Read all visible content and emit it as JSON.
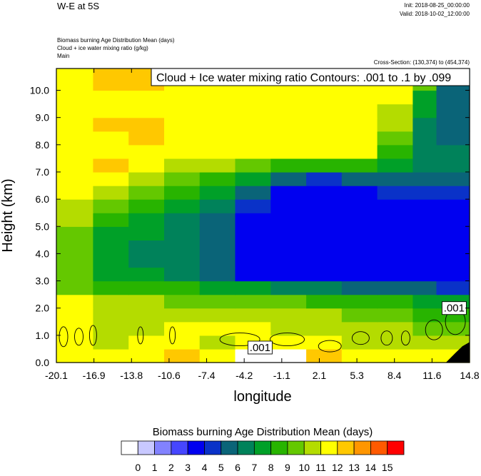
{
  "chart_data": {
    "type": "heatmap",
    "main_title": "W-E at 5S",
    "init_time": "Init: 2018-08-25_00:00:00",
    "valid_time": "Valid: 2018-10-02_12:00:00",
    "field_desc": [
      "Biomass burning Age Distribution Mean   (days)",
      "Cloud + ice water mixing ratio   (g/kg)",
      "Main"
    ],
    "cross_section": "Cross-Section: (130,374) to (454,374)",
    "contour_info": "Cloud + Ice water mixing ratio Contours: .001 to .1 by .099",
    "contour_labels": [
      {
        "text": ".001",
        "lon": -2.9,
        "h": 0.55
      },
      {
        "text": ".001",
        "lon": 13.5,
        "h": 2.0
      }
    ],
    "xlabel": "longitude",
    "ylabel": "Height (km)",
    "x_ticks": [
      "-20.1",
      "-16.9",
      "-13.8",
      "-10.6",
      "-7.4",
      "-4.2",
      "-1.1",
      "2.1",
      "5.3",
      "8.4",
      "11.6",
      "14.8"
    ],
    "y_ticks": [
      "0.0",
      "1.0",
      "2.0",
      "3.0",
      "4.0",
      "5.0",
      "6.0",
      "7.0",
      "8.0",
      "9.0",
      "10.0"
    ],
    "xlim": [
      -20.1,
      14.8
    ],
    "ylim": [
      0,
      10.8
    ],
    "colorbar": {
      "title": "Biomass burning Age Distribution Mean  (days)",
      "labels": [
        "0",
        "1",
        "2",
        "3",
        "4",
        "5",
        "6",
        "7",
        "8",
        "9",
        "10",
        "11",
        "12",
        "13",
        "14",
        "15"
      ],
      "colors": [
        "#ffffff",
        "#c8c8ff",
        "#8282ff",
        "#4646ff",
        "#0000f0",
        "#0a32c8",
        "#0a6478",
        "#00825a",
        "#00a028",
        "#28b400",
        "#64c800",
        "#b4dc00",
        "#ffff00",
        "#ffc800",
        "#ff9600",
        "#ff5a00",
        "#ff0000"
      ]
    },
    "age_field": {
      "description": "Age (days) on a longitude-height grid; rows from 0 km upward, one value per longitude column",
      "lon_edges": [
        -20.1,
        -17,
        -14,
        -11,
        -8,
        -5,
        -2,
        1,
        4,
        7,
        10,
        12,
        14.8
      ],
      "h_edges": [
        0,
        0.5,
        1,
        1.5,
        2,
        2.5,
        3,
        3.5,
        4,
        4.5,
        5,
        5.5,
        6,
        6.5,
        7,
        7.5,
        8,
        8.5,
        9,
        9.5,
        10,
        10.8
      ],
      "values": [
        [
          12,
          12,
          12,
          13,
          12,
          0,
          0,
          13,
          12,
          12,
          12,
          12
        ],
        [
          12,
          11,
          12,
          12,
          11,
          12,
          12,
          12,
          11,
          11,
          11,
          11
        ],
        [
          12,
          11,
          11,
          12,
          12,
          12,
          11,
          11,
          11,
          11,
          10,
          10
        ],
        [
          12,
          11,
          11,
          11,
          11,
          11,
          11,
          11,
          10,
          10,
          9,
          9
        ],
        [
          12,
          11,
          11,
          10,
          10,
          10,
          10,
          9,
          9,
          9,
          8,
          8
        ],
        [
          10,
          9,
          9,
          9,
          8,
          8,
          7,
          7,
          6,
          6,
          6,
          5
        ],
        [
          10,
          8,
          8,
          7,
          6,
          4,
          4,
          4,
          4,
          4,
          4,
          4
        ],
        [
          10,
          8,
          7,
          7,
          6,
          4,
          4,
          4,
          4,
          4,
          4,
          4
        ],
        [
          10,
          8,
          7,
          7,
          6,
          4,
          4,
          4,
          4,
          4,
          4,
          4
        ],
        [
          10,
          8,
          8,
          7,
          6,
          4,
          4,
          4,
          4,
          4,
          4,
          4
        ],
        [
          11,
          9,
          8,
          7,
          6,
          4,
          4,
          4,
          4,
          4,
          4,
          4
        ],
        [
          11,
          10,
          9,
          8,
          7,
          5,
          4,
          4,
          4,
          4,
          4,
          4
        ],
        [
          12,
          11,
          10,
          9,
          8,
          6,
          4,
          4,
          4,
          5,
          5,
          5
        ],
        [
          12,
          12,
          11,
          10,
          9,
          8,
          6,
          5,
          6,
          6,
          6,
          6
        ],
        [
          12,
          13,
          12,
          11,
          11,
          10,
          9,
          9,
          9,
          8,
          7,
          7
        ],
        [
          12,
          12,
          12,
          12,
          12,
          12,
          12,
          12,
          12,
          9,
          7,
          7
        ],
        [
          12,
          12,
          13,
          12,
          12,
          12,
          12,
          12,
          12,
          10,
          7,
          6
        ],
        [
          12,
          13,
          13,
          12,
          12,
          12,
          12,
          12,
          12,
          11,
          7,
          6
        ],
        [
          12,
          12,
          12,
          12,
          12,
          12,
          12,
          12,
          12,
          11,
          8,
          6
        ],
        [
          12,
          12,
          12,
          12,
          12,
          12,
          12,
          12,
          12,
          12,
          8,
          6
        ],
        [
          12,
          13,
          13,
          12,
          12,
          12,
          12,
          12,
          12,
          12,
          10,
          6
        ]
      ]
    }
  }
}
